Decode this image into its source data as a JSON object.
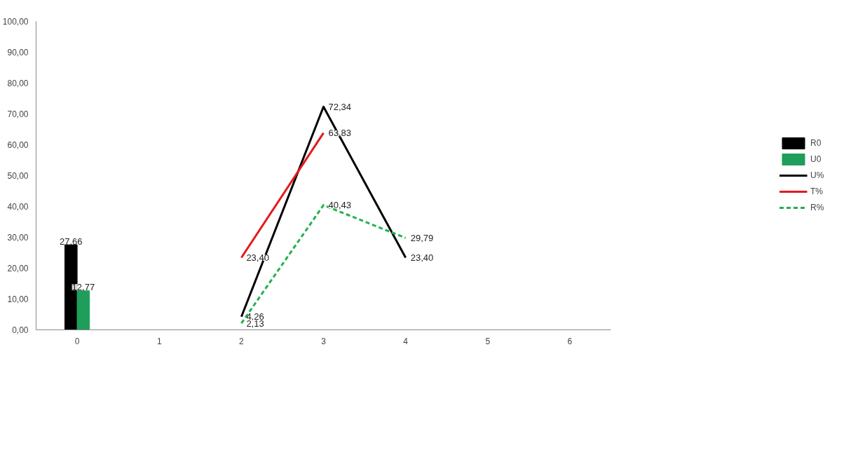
{
  "chart_data": {
    "type": "bar",
    "categories": [
      "0",
      "1",
      "2",
      "3",
      "4",
      "5",
      "6"
    ],
    "ylim": [
      0,
      100
    ],
    "yticks": [
      {
        "value": 0,
        "label": "0,00"
      },
      {
        "value": 10,
        "label": "10,00"
      },
      {
        "value": 20,
        "label": "20,00"
      },
      {
        "value": 30,
        "label": "30,00"
      },
      {
        "value": 40,
        "label": "40,00"
      },
      {
        "value": 50,
        "label": "50,00"
      },
      {
        "value": 60,
        "label": "60,00"
      },
      {
        "value": 70,
        "label": "70,00"
      },
      {
        "value": 80,
        "label": "80,00"
      },
      {
        "value": 90,
        "label": "90,00"
      },
      {
        "value": 100,
        "label": "100,00"
      }
    ],
    "grid": false,
    "legend": "right",
    "series": [
      {
        "name": "R0",
        "color": "#000000",
        "values": [
          27.66,
          null,
          null,
          null,
          null,
          null,
          null
        ],
        "value_labels": [
          "27,66",
          null,
          null,
          null,
          null,
          null,
          null
        ]
      },
      {
        "name": "U0",
        "color": "#1e9e5a",
        "values": [
          12.77,
          null,
          null,
          null,
          null,
          null,
          null
        ],
        "value_labels": [
          "12,77",
          null,
          null,
          null,
          null,
          null,
          null
        ]
      },
      {
        "name": "U%",
        "type": "line",
        "color": "#000000",
        "line_style": "solid",
        "values": [
          null,
          null,
          4.26,
          72.34,
          23.4,
          null,
          null
        ],
        "value_labels": [
          null,
          null,
          "4,26",
          "72,34",
          "23,40",
          null,
          null
        ]
      },
      {
        "name": "T%",
        "type": "line",
        "color": "#e31a1c",
        "line_style": "solid",
        "values": [
          null,
          null,
          23.4,
          63.83,
          null,
          null,
          null
        ],
        "value_labels": [
          null,
          null,
          "23,40",
          "63,83",
          null,
          null,
          null
        ]
      },
      {
        "name": "R%",
        "type": "line",
        "color": "#22b14c",
        "line_style": "dashed",
        "values": [
          null,
          null,
          2.13,
          40.43,
          29.79,
          null,
          null
        ],
        "value_labels": [
          null,
          null,
          "2,13",
          "40,43",
          "29,79",
          null,
          null
        ]
      }
    ]
  }
}
